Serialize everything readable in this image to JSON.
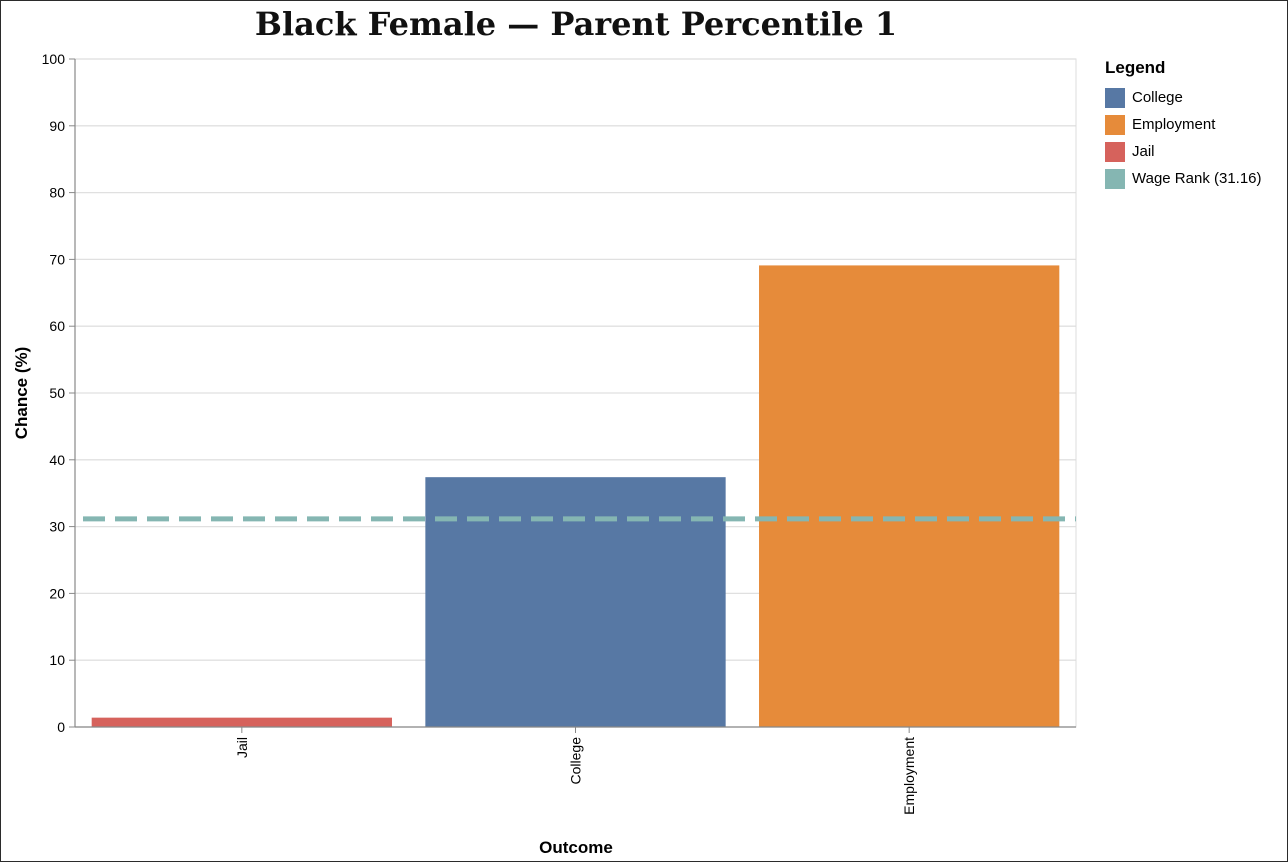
{
  "chart_data": {
    "type": "bar",
    "title": "Black Female — Parent Percentile 1",
    "xlabel": "Outcome",
    "ylabel": "Chance (%)",
    "ylim": [
      0,
      100
    ],
    "yticks": [
      0,
      10,
      20,
      30,
      40,
      50,
      60,
      70,
      80,
      90,
      100
    ],
    "grid": true,
    "categories": [
      "Jail",
      "College",
      "Employment"
    ],
    "values": [
      1.4,
      37.4,
      69.1
    ],
    "colors": [
      "#d6625c",
      "#5778a4",
      "#e68b3a"
    ],
    "reference_line": {
      "label": "Wage Rank (31.16)",
      "value": 31.16,
      "color": "#85b6b2",
      "style": "dashed"
    },
    "legend": {
      "title": "Legend",
      "placement": "right",
      "items": [
        {
          "label": "College",
          "color": "#5778a4"
        },
        {
          "label": "Employment",
          "color": "#e68b3a"
        },
        {
          "label": "Jail",
          "color": "#d6625c"
        },
        {
          "label": "Wage Rank (31.16)",
          "color": "#85b6b2"
        }
      ]
    }
  }
}
